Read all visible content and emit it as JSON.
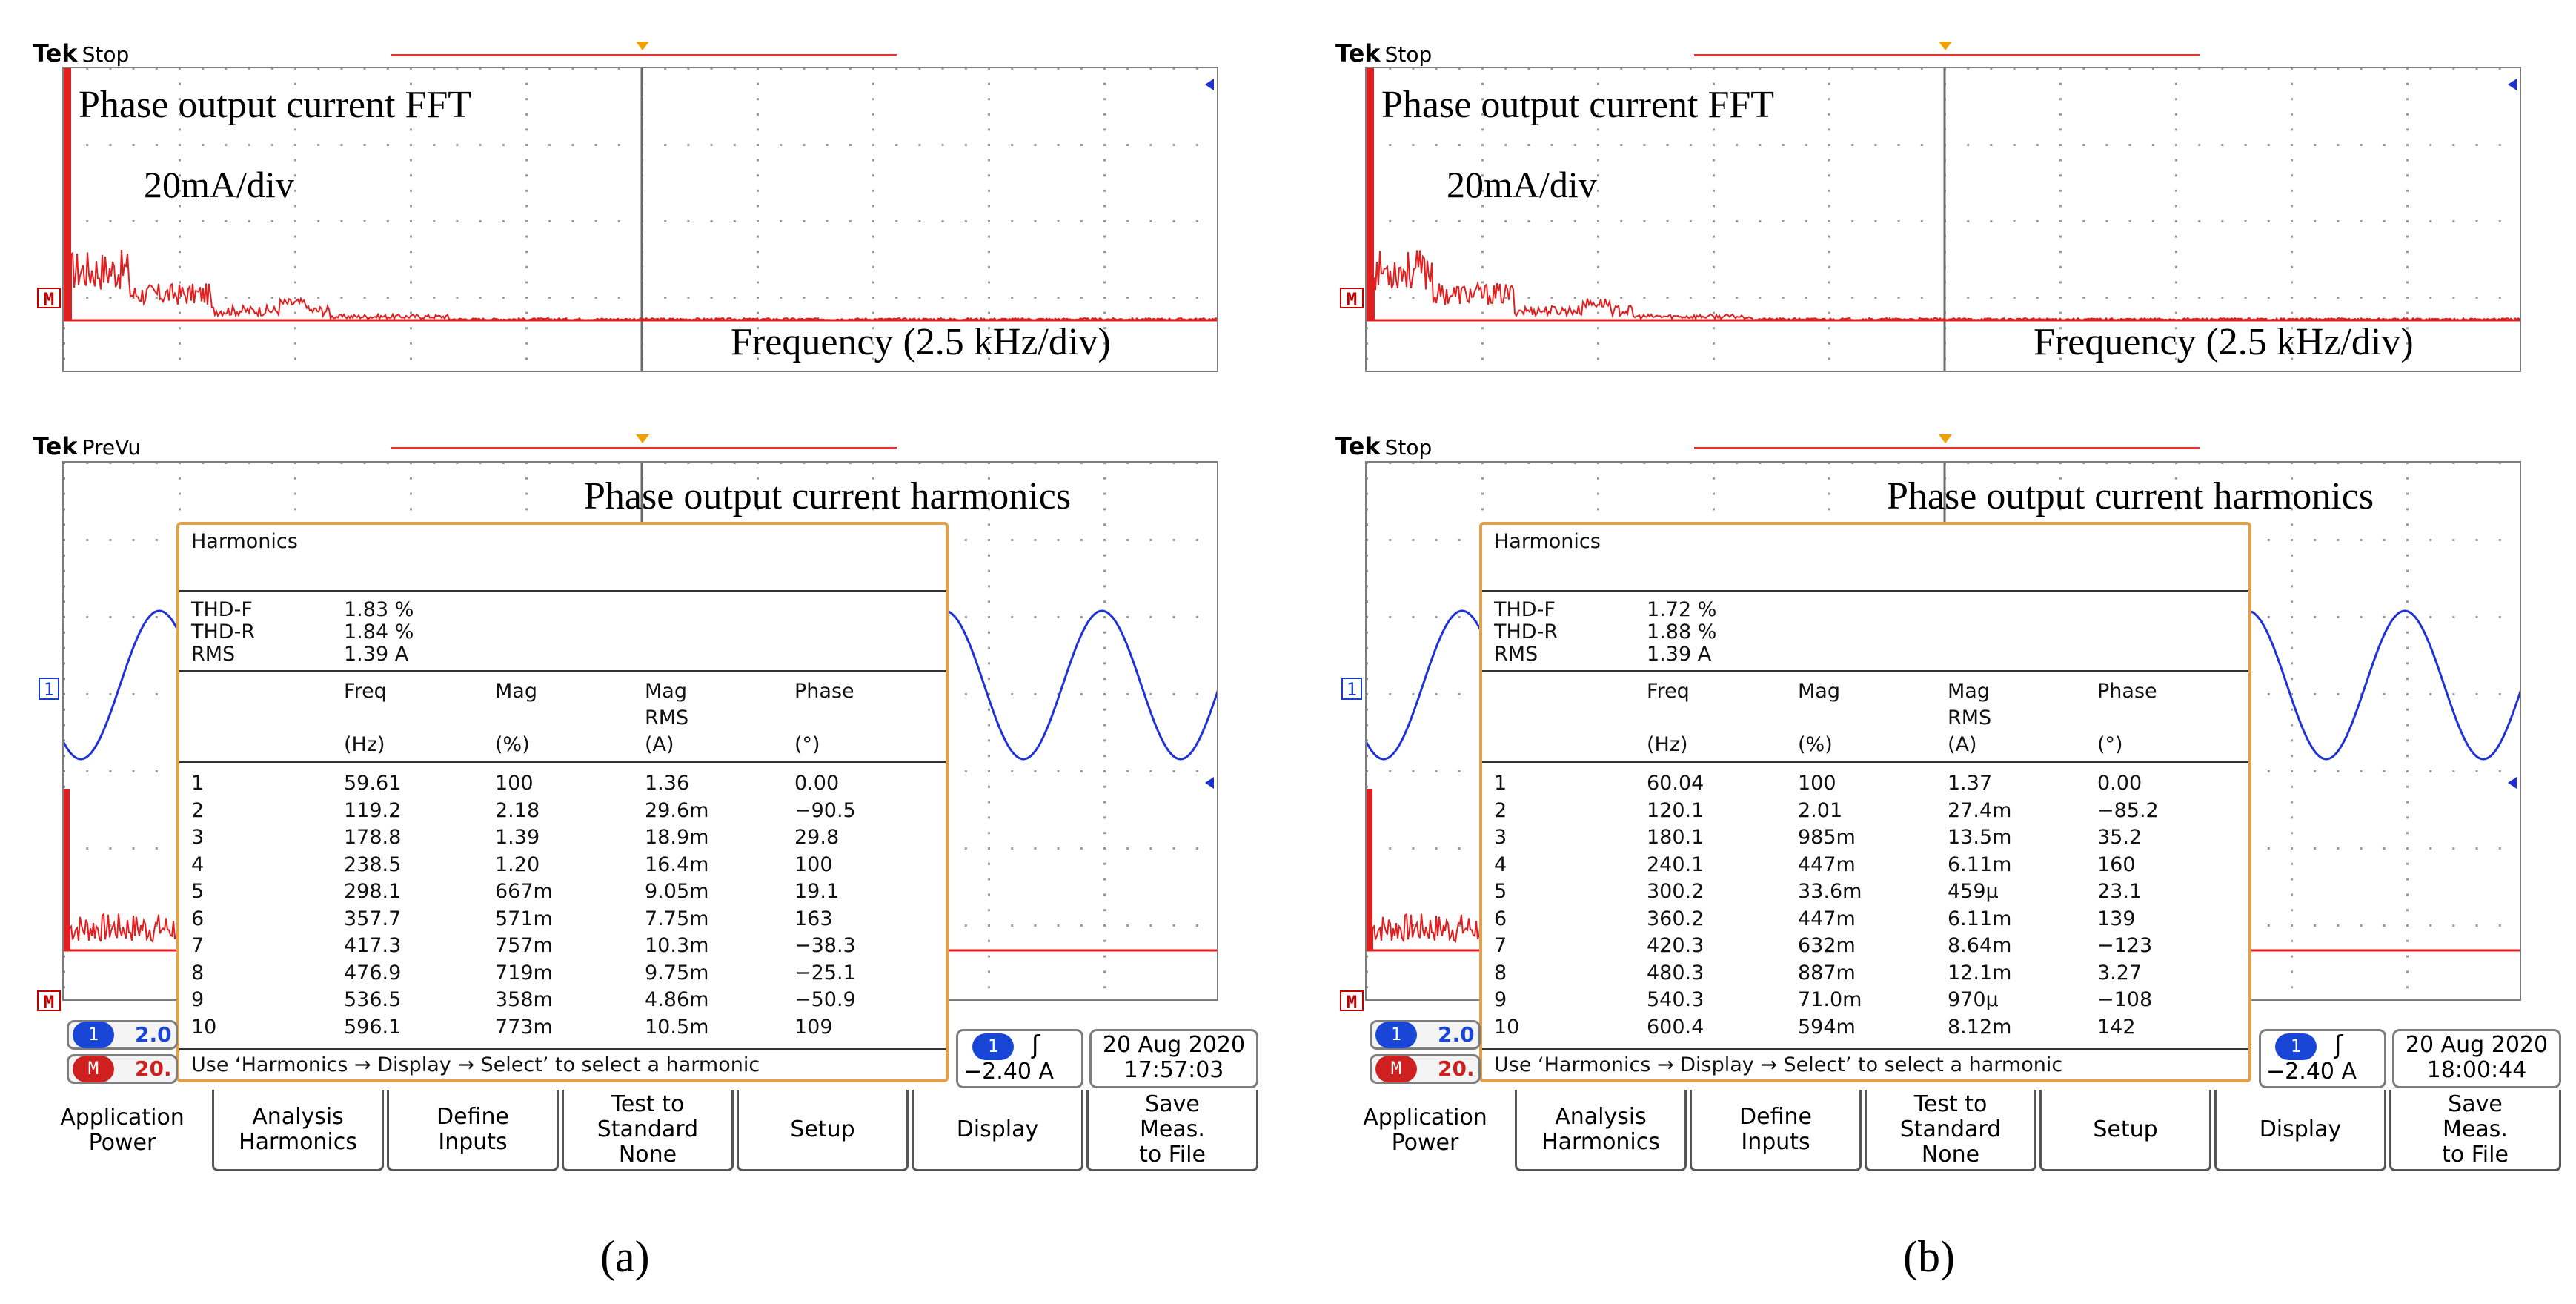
{
  "panels": [
    {
      "caption": "(a)",
      "top_screen": {
        "tek": "Tek",
        "state": "Stop",
        "title": "Phase output current FFT",
        "scale": "20mA/div",
        "xaxis": "Frequency (2.5 kHz/div)",
        "marker": "M"
      },
      "bottom_screen": {
        "tek": "Tek",
        "state": "PreVu",
        "title": "Phase output current harmonics",
        "ch1_marker": "1",
        "math_marker": "M"
      },
      "harmonics": {
        "title": "Harmonics",
        "thd_f_label": "THD-F",
        "thd_f": "1.83 %",
        "thd_r_label": "THD-R",
        "thd_r": "1.84 %",
        "rms_label": "RMS",
        "rms": "1.39 A",
        "col_freq": "Freq",
        "col_freq_unit": "(Hz)",
        "col_mag": "Mag",
        "col_mag_unit": "(%)",
        "col_magrms": "Mag",
        "col_magrms2": "RMS",
        "col_magrms_unit": "(A)",
        "col_phase": "Phase",
        "col_phase_unit": "(°)",
        "rows": [
          {
            "n": "1",
            "freq": "59.61",
            "mag": "100",
            "magrms": "1.36",
            "phase": "0.00"
          },
          {
            "n": "2",
            "freq": "119.2",
            "mag": "2.18",
            "magrms": "29.6m",
            "phase": "−90.5"
          },
          {
            "n": "3",
            "freq": "178.8",
            "mag": "1.39",
            "magrms": "18.9m",
            "phase": "29.8"
          },
          {
            "n": "4",
            "freq": "238.5",
            "mag": "1.20",
            "magrms": "16.4m",
            "phase": "100"
          },
          {
            "n": "5",
            "freq": "298.1",
            "mag": "667m",
            "magrms": "9.05m",
            "phase": "19.1"
          },
          {
            "n": "6",
            "freq": "357.7",
            "mag": "571m",
            "magrms": "7.75m",
            "phase": "163"
          },
          {
            "n": "7",
            "freq": "417.3",
            "mag": "757m",
            "magrms": "10.3m",
            "phase": "−38.3"
          },
          {
            "n": "8",
            "freq": "476.9",
            "mag": "719m",
            "magrms": "9.75m",
            "phase": "−25.1"
          },
          {
            "n": "9",
            "freq": "536.5",
            "mag": "358m",
            "magrms": "4.86m",
            "phase": "−50.9"
          },
          {
            "n": "10",
            "freq": "596.1",
            "mag": "773m",
            "magrms": "10.5m",
            "phase": "109"
          }
        ],
        "hint": "Use ‘Harmonics → Display → Select’ to select a harmonic"
      },
      "readouts": {
        "ch1_pill": "1",
        "ch1_value": "2.0",
        "math_pill": "M",
        "math_value": "20.",
        "trig_pill": "1",
        "trig_slope": "ʃ",
        "trig_level": "−2.40 A",
        "date": "20 Aug 2020",
        "time": "17:57:03"
      },
      "menu": [
        {
          "label": "Application\nPower"
        },
        {
          "label": "Analysis\nHarmonics"
        },
        {
          "label": "Define\nInputs"
        },
        {
          "label": "Test to\nStandard\nNone"
        },
        {
          "label": "Setup"
        },
        {
          "label": "Display"
        },
        {
          "label": "Save\nMeas.\nto File"
        }
      ]
    },
    {
      "caption": "(b)",
      "top_screen": {
        "tek": "Tek",
        "state": "Stop",
        "title": "Phase output current FFT",
        "scale": "20mA/div",
        "xaxis": "Frequency (2.5 kHz/div)",
        "marker": "M"
      },
      "bottom_screen": {
        "tek": "Tek",
        "state": "Stop",
        "title": "Phase output current harmonics",
        "ch1_marker": "1",
        "math_marker": "M"
      },
      "harmonics": {
        "title": "Harmonics",
        "thd_f_label": "THD-F",
        "thd_f": "1.72 %",
        "thd_r_label": "THD-R",
        "thd_r": "1.88 %",
        "rms_label": "RMS",
        "rms": "1.39 A",
        "col_freq": "Freq",
        "col_freq_unit": "(Hz)",
        "col_mag": "Mag",
        "col_mag_unit": "(%)",
        "col_magrms": "Mag",
        "col_magrms2": "RMS",
        "col_magrms_unit": "(A)",
        "col_phase": "Phase",
        "col_phase_unit": "(°)",
        "rows": [
          {
            "n": "1",
            "freq": "60.04",
            "mag": "100",
            "magrms": "1.37",
            "phase": "0.00"
          },
          {
            "n": "2",
            "freq": "120.1",
            "mag": "2.01",
            "magrms": "27.4m",
            "phase": "−85.2"
          },
          {
            "n": "3",
            "freq": "180.1",
            "mag": "985m",
            "magrms": "13.5m",
            "phase": "35.2"
          },
          {
            "n": "4",
            "freq": "240.1",
            "mag": "447m",
            "magrms": "6.11m",
            "phase": "160"
          },
          {
            "n": "5",
            "freq": "300.2",
            "mag": "33.6m",
            "magrms": "459µ",
            "phase": "23.1"
          },
          {
            "n": "6",
            "freq": "360.2",
            "mag": "447m",
            "magrms": "6.11m",
            "phase": "139"
          },
          {
            "n": "7",
            "freq": "420.3",
            "mag": "632m",
            "magrms": "8.64m",
            "phase": "−123"
          },
          {
            "n": "8",
            "freq": "480.3",
            "mag": "887m",
            "magrms": "12.1m",
            "phase": "3.27"
          },
          {
            "n": "9",
            "freq": "540.3",
            "mag": "71.0m",
            "magrms": "970µ",
            "phase": "−108"
          },
          {
            "n": "10",
            "freq": "600.4",
            "mag": "594m",
            "magrms": "8.12m",
            "phase": "142"
          }
        ],
        "hint": "Use ‘Harmonics → Display → Select’ to select a harmonic"
      },
      "readouts": {
        "ch1_pill": "1",
        "ch1_value": "2.0",
        "math_pill": "M",
        "math_value": "20.",
        "trig_pill": "1",
        "trig_slope": "ʃ",
        "trig_level": "−2.40 A",
        "date": "20 Aug 2020",
        "time": "18:00:44"
      },
      "menu": [
        {
          "label": "Application\nPower"
        },
        {
          "label": "Analysis\nHarmonics"
        },
        {
          "label": "Define\nInputs"
        },
        {
          "label": "Test to\nStandard\nNone"
        },
        {
          "label": "Setup"
        },
        {
          "label": "Display"
        },
        {
          "label": "Save\nMeas.\nto File"
        }
      ]
    }
  ],
  "colors": {
    "trace_red": "#e02020",
    "trace_blue": "#1f33d6",
    "accent_orange": "#e2a04a",
    "grid": "#9a9a9a"
  }
}
